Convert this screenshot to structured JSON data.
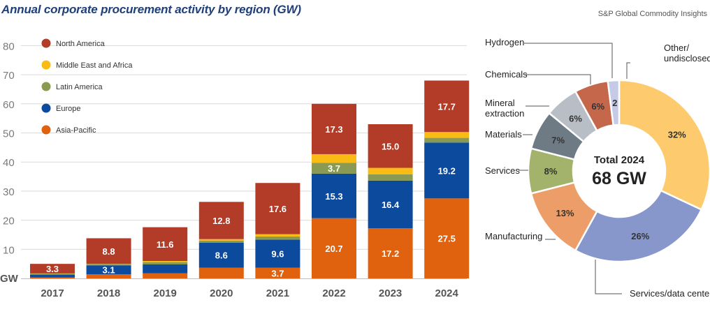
{
  "title": "Annual corporate procurement activity by region (GW)",
  "source": "S&P Global Commodity Insights",
  "colors": {
    "north_america": "#b23c27",
    "middle_east_africa": "#f9bc14",
    "latin_america": "#8a9a52",
    "europe": "#0c4a9d",
    "asia_pacific": "#e0620f"
  },
  "chart_data": [
    {
      "type": "bar",
      "stacked": true,
      "title": "Annual corporate procurement activity by region (GW)",
      "ylabel": "GW",
      "ylim": [
        0,
        80
      ],
      "yticks": [
        10,
        20,
        30,
        40,
        50,
        60,
        70,
        80
      ],
      "categories": [
        "2017",
        "2018",
        "2019",
        "2020",
        "2021",
        "2022",
        "2023",
        "2024"
      ],
      "legend": [
        "North America",
        "Middle East and Africa",
        "Latin America",
        "Europe",
        "Asia-Pacific"
      ],
      "series": [
        {
          "name": "Asia-Pacific",
          "key": "asia_pacific",
          "values": [
            0.3,
            1.4,
            1.8,
            3.7,
            3.7,
            20.7,
            17.2,
            27.5
          ]
        },
        {
          "name": "Europe",
          "key": "europe",
          "values": [
            1.0,
            3.1,
            3.0,
            8.6,
            9.6,
            15.3,
            16.4,
            19.2
          ]
        },
        {
          "name": "Latin America",
          "key": "latin_america",
          "values": [
            0.3,
            0.4,
            0.8,
            0.7,
            1.1,
            3.7,
            2.2,
            1.6
          ]
        },
        {
          "name": "Middle East and Africa",
          "key": "middle_east_africa",
          "values": [
            0.1,
            0.1,
            0.4,
            0.5,
            0.8,
            3.0,
            2.2,
            2.0
          ]
        },
        {
          "name": "North America",
          "key": "north_america",
          "values": [
            3.3,
            8.8,
            11.6,
            12.8,
            17.6,
            17.3,
            15.0,
            17.7
          ]
        }
      ],
      "data_labels": [
        {
          "category": "2017",
          "series": "North America",
          "text": "3.3"
        },
        {
          "category": "2018",
          "series": "North America",
          "text": "8.8"
        },
        {
          "category": "2018",
          "series": "Europe",
          "text": "3.1"
        },
        {
          "category": "2019",
          "series": "North America",
          "text": "11.6"
        },
        {
          "category": "2020",
          "series": "North America",
          "text": "12.8"
        },
        {
          "category": "2020",
          "series": "Europe",
          "text": "8.6"
        },
        {
          "category": "2021",
          "series": "North America",
          "text": "17.6"
        },
        {
          "category": "2021",
          "series": "Europe",
          "text": "9.6"
        },
        {
          "category": "2021",
          "series": "Asia-Pacific",
          "text": "3.7"
        },
        {
          "category": "2022",
          "series": "North America",
          "text": "17.3"
        },
        {
          "category": "2022",
          "series": "Latin America",
          "text": "3.7"
        },
        {
          "category": "2022",
          "series": "Europe",
          "text": "15.3"
        },
        {
          "category": "2022",
          "series": "Asia-Pacific",
          "text": "20.7"
        },
        {
          "category": "2023",
          "series": "North America",
          "text": "15.0"
        },
        {
          "category": "2023",
          "series": "Europe",
          "text": "16.4"
        },
        {
          "category": "2023",
          "series": "Asia-Pacific",
          "text": "17.2"
        },
        {
          "category": "2024",
          "series": "North America",
          "text": "17.7"
        },
        {
          "category": "2024",
          "series": "Europe",
          "text": "19.2"
        },
        {
          "category": "2024",
          "series": "Asia-Pacific",
          "text": "27.5"
        }
      ]
    },
    {
      "type": "pie",
      "donut": true,
      "center_text": [
        "Total 2024",
        "68 GW"
      ],
      "slices": [
        {
          "name": "Other/ undisclosed",
          "label_lines": [
            "Other/",
            "undisclosed"
          ],
          "value": 32,
          "value_label": "32%",
          "color": "#fdcb6e"
        },
        {
          "name": "Services/data centers",
          "label_lines": [
            "Services/data centers"
          ],
          "value": 26,
          "value_label": "26%",
          "color": "#8797cc"
        },
        {
          "name": "Manufacturing",
          "label_lines": [
            "Manufacturing"
          ],
          "value": 13,
          "value_label": "13%",
          "color": "#ed9e68"
        },
        {
          "name": "Services",
          "label_lines": [
            "Services"
          ],
          "value": 8,
          "value_label": "8%",
          "color": "#a4b36b"
        },
        {
          "name": "Materials",
          "label_lines": [
            "Materials"
          ],
          "value": 7,
          "value_label": "7%",
          "color": "#6e7b85"
        },
        {
          "name": "Mineral extraction",
          "label_lines": [
            "Mineral",
            "extraction"
          ],
          "value": 6,
          "value_label": "6%",
          "color": "#b8bec6"
        },
        {
          "name": "Chemicals",
          "label_lines": [
            "Chemicals"
          ],
          "value": 6,
          "value_label": "6%",
          "color": "#c4674a"
        },
        {
          "name": "Hydrogen",
          "label_lines": [
            "Hydrogen"
          ],
          "value": 2,
          "value_label": "2",
          "color": "#c5cae6"
        }
      ]
    }
  ]
}
